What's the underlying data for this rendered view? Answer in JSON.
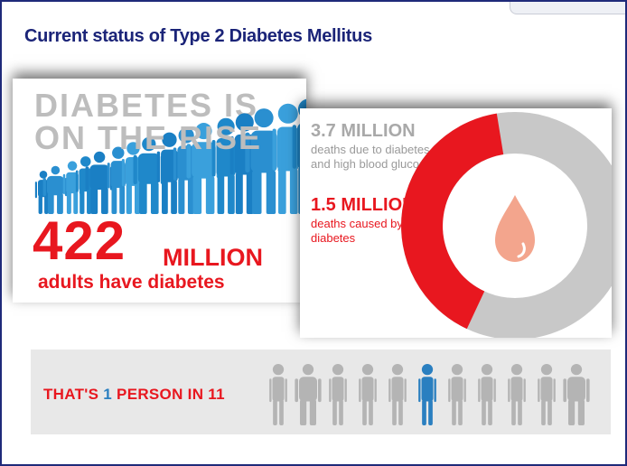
{
  "title": "Current status of Type 2 Diabetes Mellitus",
  "panel_rise": {
    "headline_line1": "DIABETES IS",
    "headline_line2": "ON THE RISE",
    "number": "422",
    "unit": "MILLION",
    "caption": "adults have diabetes"
  },
  "panel_deaths": {
    "total": "3.7 MILLION",
    "total_caption": "deaths due to diabetes and high blood glucose",
    "diabetes": "1.5 MILLION",
    "diabetes_caption": "deaths caused by diabetes",
    "diabetes_fraction": 0.405
  },
  "banner": {
    "prefix": "THAT'S ",
    "highlight": "1",
    "suffix": " PERSON IN 11"
  },
  "colors": {
    "title": "#1b2478",
    "red": "#e8171f",
    "blue": "#2a7fc0",
    "gray": "#bdbdbd",
    "drop": "#f3a58d"
  },
  "icons": [
    "people-crowd-icon",
    "blood-drop-icon",
    "person-icon",
    "pregnant-person-icon"
  ]
}
